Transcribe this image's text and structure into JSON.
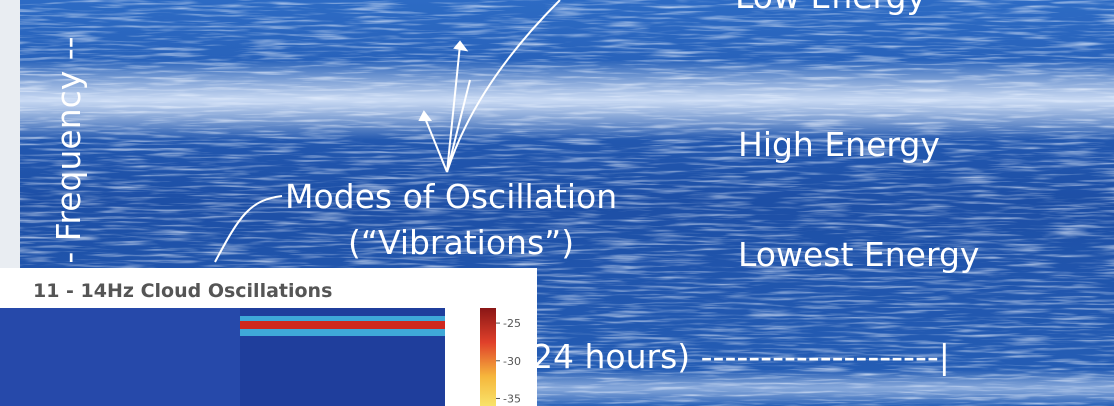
{
  "main": {
    "top_label": "Low Energy",
    "axis_label": "- Frequency --",
    "labels": [
      "High Energy",
      "Modes of Oscillation",
      "(“Vibrations”)",
      "Lowest Energy"
    ],
    "time_label": "24 hours) --------------------|"
  },
  "inset": {
    "title": "11 - 14Hz Cloud Oscillations",
    "colorbar": {
      "ticks": [
        -25,
        -30,
        -35
      ],
      "lim": [
        -23,
        -36
      ]
    }
  }
}
